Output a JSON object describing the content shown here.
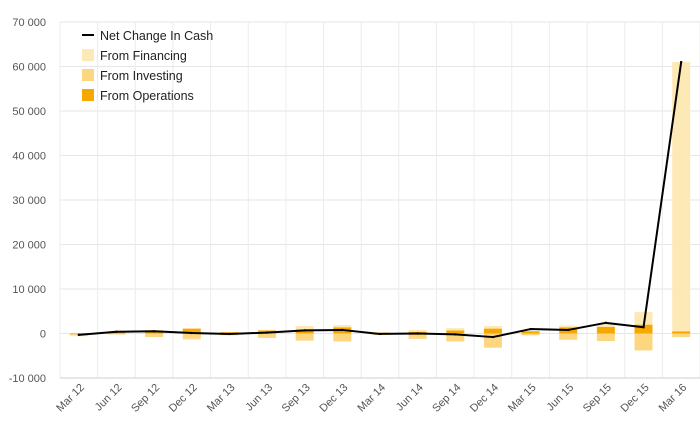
{
  "chart_data": {
    "type": "bar",
    "title": "",
    "xlabel": "",
    "ylabel": "",
    "categories": [
      "Mar 12",
      "Jun 12",
      "Sep 12",
      "Dec 12",
      "Mar 13",
      "Jun 13",
      "Sep 13",
      "Dec 13",
      "Mar 14",
      "Jun 14",
      "Sep 14",
      "Dec 14",
      "Mar 15",
      "Jun 15",
      "Sep 15",
      "Dec 15",
      "Mar 16"
    ],
    "ylim": [
      -10000,
      70000
    ],
    "yticks": [
      -10000,
      0,
      10000,
      20000,
      30000,
      40000,
      50000,
      60000,
      70000
    ],
    "ytick_labels": [
      "-10 000",
      "0",
      "10 000",
      "20 000",
      "30 000",
      "40 000",
      "50 000",
      "60 000",
      "70 000"
    ],
    "grid": true,
    "legend_position": "top-left",
    "stacked": true,
    "series": [
      {
        "name": "Net Change In Cash",
        "kind": "line",
        "color": "#000000",
        "values": [
          -300,
          400,
          500,
          100,
          -100,
          200,
          700,
          800,
          -100,
          0,
          -200,
          -800,
          1000,
          800,
          2400,
          1400,
          61000
        ]
      },
      {
        "name": "From Financing",
        "kind": "bar",
        "color": "#fde9b5",
        "values": [
          -200,
          100,
          0,
          -200,
          0,
          0,
          800,
          500,
          0,
          400,
          500,
          600,
          0,
          400,
          800,
          2800,
          60500
        ]
      },
      {
        "name": "From Investing",
        "kind": "bar",
        "color": "#fdd77f",
        "values": [
          -400,
          -200,
          -800,
          -1200,
          -400,
          -1000,
          -1600,
          -1800,
          -300,
          -1200,
          -1800,
          -3200,
          -400,
          -1400,
          -1700,
          -3800,
          -800
        ]
      },
      {
        "name": "From Operations",
        "kind": "bar",
        "color": "#f5a800",
        "values": [
          100,
          400,
          700,
          1100,
          300,
          700,
          900,
          1400,
          200,
          400,
          700,
          1100,
          500,
          1400,
          1500,
          2000,
          500
        ]
      }
    ]
  }
}
